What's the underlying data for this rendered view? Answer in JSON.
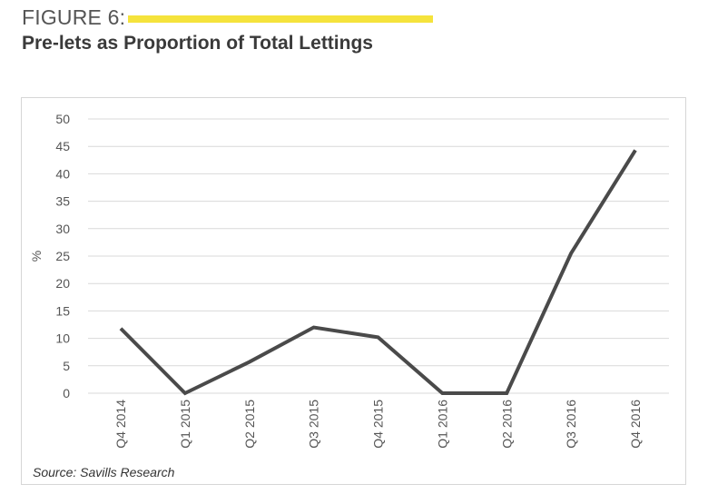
{
  "header": {
    "figure_label": "FIGURE 6:",
    "title": "Pre-lets as Proportion of Total Lettings"
  },
  "source": "Source: Savills Research",
  "colors": {
    "accent": "#f5e33c",
    "line": "#4a4a4a",
    "grid": "#d9d9d9"
  },
  "chart_data": {
    "type": "line",
    "title": "",
    "xlabel": "",
    "ylabel": "%",
    "ylim": [
      0,
      50
    ],
    "yticks": [
      0,
      5,
      10,
      15,
      20,
      25,
      30,
      35,
      40,
      45,
      50
    ],
    "grid": true,
    "categories": [
      "Q4 2014",
      "Q1 2015",
      "Q2 2015",
      "Q3 2015",
      "Q4 2015",
      "Q1 2016",
      "Q2 2016",
      "Q3 2016",
      "Q4 2016"
    ],
    "series": [
      {
        "values": [
          11.8,
          0,
          5.7,
          12.0,
          10.2,
          0,
          0,
          25.5,
          44.3
        ]
      }
    ]
  }
}
